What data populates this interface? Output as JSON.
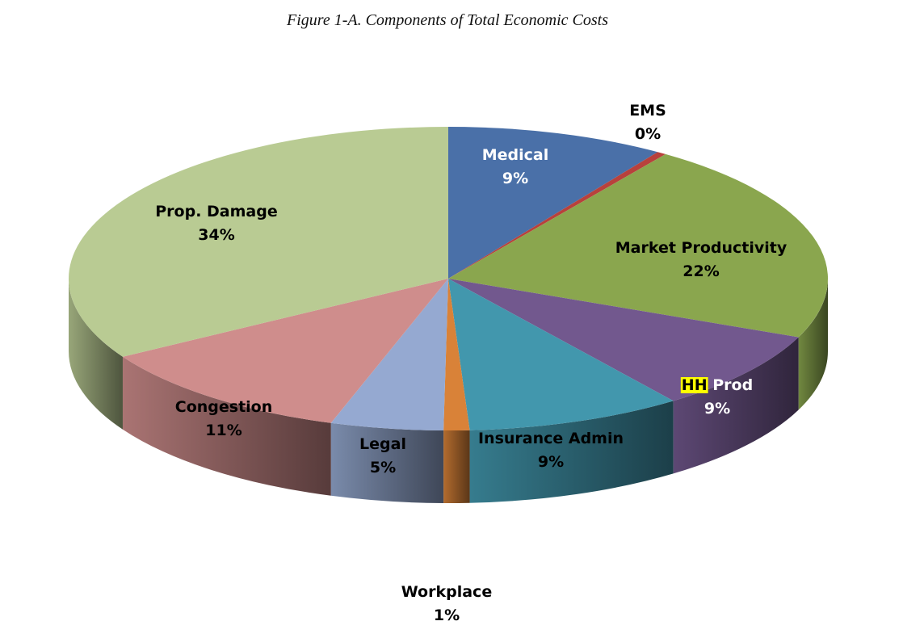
{
  "chart_data": {
    "type": "pie",
    "title": "Figure 1-A. Components of Total Economic Costs",
    "slices": [
      {
        "name": "Medical",
        "label": "Medical",
        "pct_label": "9%",
        "value": 9.3,
        "color": "#4A70A8",
        "label_color": "#ffffff"
      },
      {
        "name": "EMS",
        "label": "EMS",
        "pct_label": "0%",
        "value": 0.4,
        "color": "#B8413C",
        "label_color": "#000000"
      },
      {
        "name": "Market Productivity",
        "label": "Market Productivity",
        "pct_label": "22%",
        "value": 21.6,
        "color": "#8AA64E",
        "label_color": "#000000"
      },
      {
        "name": "HH Prod",
        "label_highlight": "HH",
        "label": " Prod",
        "pct_label": "9%",
        "value": 8.6,
        "color": "#72588E",
        "label_color": "#ffffff",
        "highlight_color": "#FFFF00"
      },
      {
        "name": "Insurance Admin",
        "label": "Insurance Admin",
        "pct_label": "9%",
        "value": 9.2,
        "color": "#4297AD",
        "label_color": "#000000"
      },
      {
        "name": "Workplace",
        "label": "Workplace",
        "pct_label": "1%",
        "value": 1.1,
        "color": "#D98238",
        "label_color": "#000000"
      },
      {
        "name": "Legal",
        "label": "Legal",
        "pct_label": "5%",
        "value": 4.8,
        "color": "#95A9D1",
        "label_color": "#000000"
      },
      {
        "name": "Congestion",
        "label": "Congestion",
        "pct_label": "11%",
        "value": 11.4,
        "color": "#CF8D8C",
        "label_color": "#000000"
      },
      {
        "name": "Prop. Damage",
        "label": "Prop. Damage",
        "pct_label": "34%",
        "value": 33.6,
        "color": "#B9CB93",
        "label_color": "#000000"
      }
    ],
    "start": "12 o'clock",
    "direction": "clockwise",
    "style": "3d-tilted",
    "legend": "none"
  }
}
